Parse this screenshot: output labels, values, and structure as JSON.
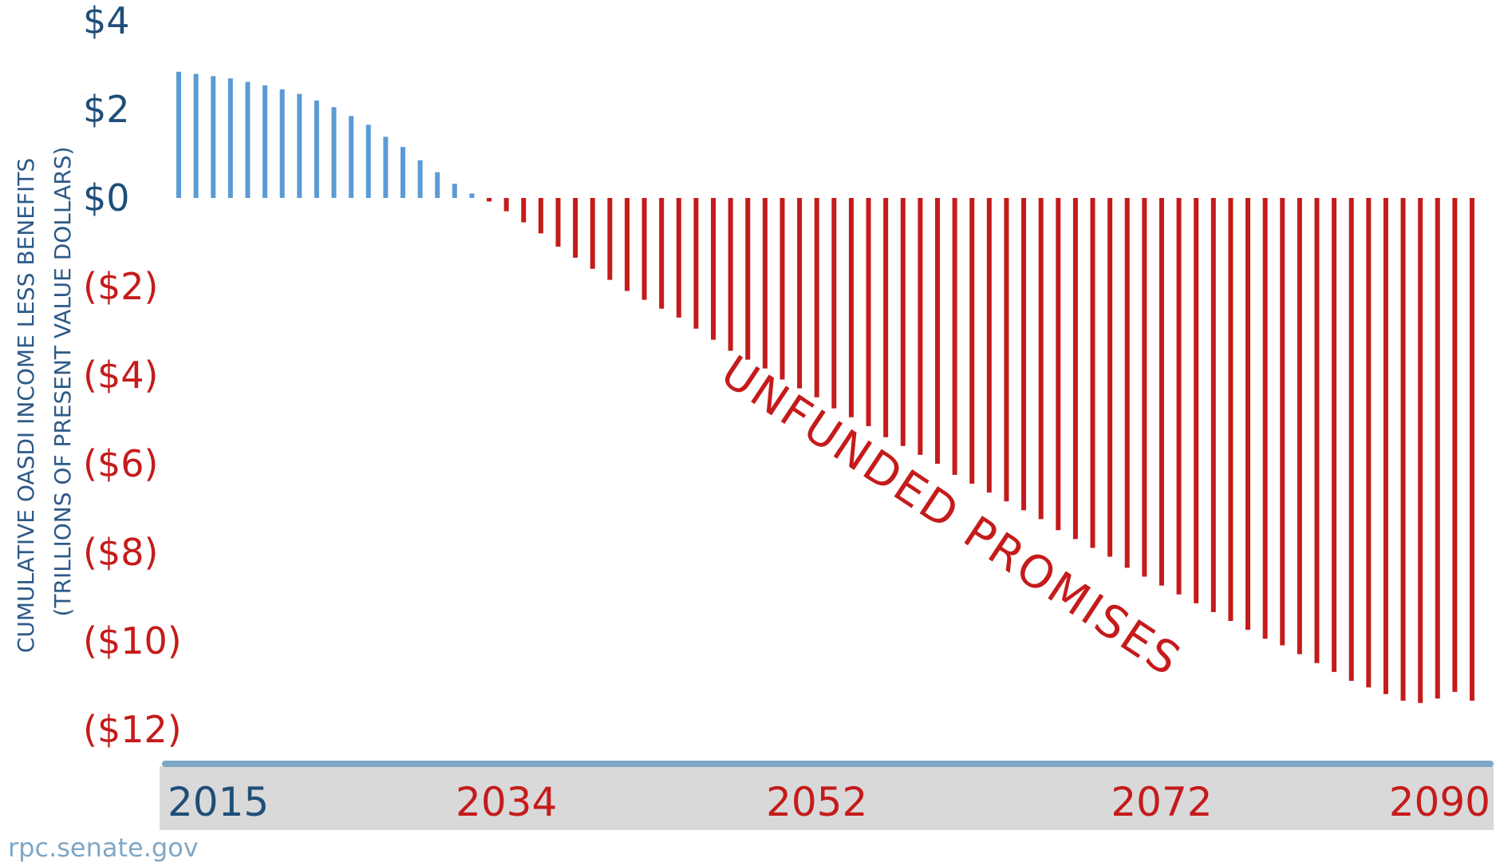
{
  "chart_data": {
    "type": "bar",
    "x": [
      2015,
      2016,
      2017,
      2018,
      2019,
      2020,
      2021,
      2022,
      2023,
      2024,
      2025,
      2026,
      2027,
      2028,
      2029,
      2030,
      2031,
      2032,
      2033,
      2034,
      2035,
      2036,
      2037,
      2038,
      2039,
      2040,
      2041,
      2042,
      2043,
      2044,
      2045,
      2046,
      2047,
      2048,
      2049,
      2050,
      2051,
      2052,
      2053,
      2054,
      2055,
      2056,
      2057,
      2058,
      2059,
      2060,
      2061,
      2062,
      2063,
      2064,
      2065,
      2066,
      2067,
      2068,
      2069,
      2070,
      2071,
      2072,
      2073,
      2074,
      2075,
      2076,
      2077,
      2078,
      2079,
      2080,
      2081,
      2082,
      2083,
      2084,
      2085,
      2086,
      2087,
      2088,
      2089,
      2090
    ],
    "values": [
      2.85,
      2.8,
      2.75,
      2.7,
      2.62,
      2.54,
      2.45,
      2.35,
      2.2,
      2.05,
      1.85,
      1.65,
      1.38,
      1.15,
      0.85,
      0.58,
      0.32,
      0.1,
      -0.08,
      -0.3,
      -0.55,
      -0.8,
      -1.1,
      -1.35,
      -1.6,
      -1.85,
      -2.1,
      -2.3,
      -2.5,
      -2.7,
      -2.95,
      -3.2,
      -3.45,
      -3.65,
      -3.85,
      -4.1,
      -4.3,
      -4.5,
      -4.75,
      -4.95,
      -5.15,
      -5.4,
      -5.6,
      -5.8,
      -6.0,
      -6.25,
      -6.45,
      -6.65,
      -6.85,
      -7.05,
      -7.25,
      -7.5,
      -7.7,
      -7.9,
      -8.1,
      -8.35,
      -8.55,
      -8.75,
      -8.95,
      -9.15,
      -9.35,
      -9.55,
      -9.75,
      -9.95,
      -10.1,
      -10.3,
      -10.5,
      -10.7,
      -10.9,
      -11.05,
      -11.2,
      -11.35,
      -11.4,
      -11.3,
      -11.15,
      -11.35
    ],
    "positive_color": "#5b9bd5",
    "negative_color": "#c51b1b",
    "ylim": [
      -12,
      4
    ],
    "yticks": [
      {
        "value": 4,
        "label": "$4",
        "color": "#1f4e79"
      },
      {
        "value": 2,
        "label": "$2",
        "color": "#1f4e79"
      },
      {
        "value": 0,
        "label": "$0",
        "color": "#1f4e79"
      },
      {
        "value": -2,
        "label": "($2)",
        "color": "#c51b1b"
      },
      {
        "value": -4,
        "label": "($4)",
        "color": "#c51b1b"
      },
      {
        "value": -6,
        "label": "($6)",
        "color": "#c51b1b"
      },
      {
        "value": -8,
        "label": "($8)",
        "color": "#c51b1b"
      },
      {
        "value": -10,
        "label": "($10)",
        "color": "#c51b1b"
      },
      {
        "value": -12,
        "label": "($12)",
        "color": "#c51b1b"
      }
    ],
    "xticks": [
      {
        "value": 2015,
        "label": "2015",
        "color": "#1f4e79"
      },
      {
        "value": 2034,
        "label": "2034",
        "color": "#c51b1b"
      },
      {
        "value": 2052,
        "label": "2052",
        "color": "#c51b1b"
      },
      {
        "value": 2072,
        "label": "2072",
        "color": "#c51b1b"
      },
      {
        "value": 2090,
        "label": "2090",
        "color": "#c51b1b"
      }
    ],
    "ylabel_line1": "CUMULATIVE OASDI INCOME LESS BENEFITS",
    "ylabel_line2": "(TRILLIONS OF PRESENT VALUE DOLLARS)",
    "annotation": "UNFUNDED PROMISES",
    "annotation_color": "#c51b1b",
    "axis_color": "#7fa7c6",
    "xaxis_band_color": "#d9d9d9",
    "source": "rpc.senate.gov",
    "grid": false,
    "legend": "none"
  }
}
